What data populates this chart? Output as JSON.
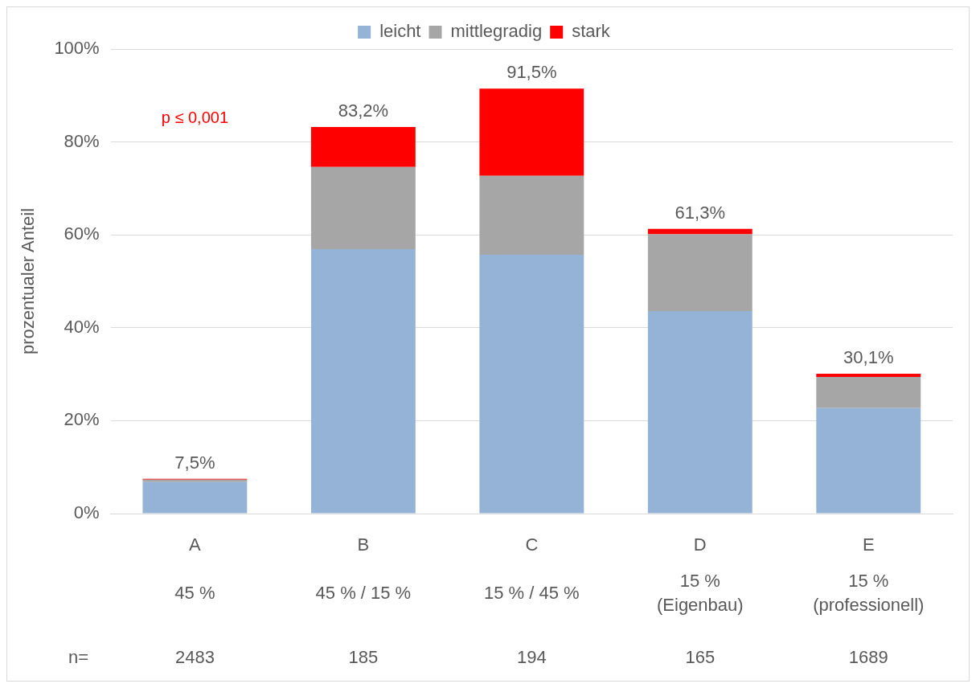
{
  "chart_data": {
    "type": "bar",
    "stacked": true,
    "ylabel": "prozentualer Anteil",
    "categories": [
      "A\n45 %\n2483",
      "B\n45 % / 15 %\n185",
      "C\n15 % / 45 %\n194",
      "D\n15 %\n(Eigenbau)\n165",
      "E\n15 %\n(professionell)\n1689"
    ],
    "series": [
      {
        "name": "leicht",
        "color": "#95b3d7",
        "values": [
          6.8,
          56.9,
          55.7,
          43.6,
          22.7
        ]
      },
      {
        "name": "mittlegradig",
        "color": "#a6a6a6",
        "values": [
          0.5,
          17.7,
          17.0,
          16.5,
          6.7
        ]
      },
      {
        "name": "stark",
        "color": "#ff0000",
        "values": [
          0.2,
          8.6,
          18.8,
          1.2,
          0.7
        ]
      }
    ],
    "totals": [
      "7,5%",
      "83,2%",
      "91,5%",
      "61,3%",
      "30,1%"
    ],
    "ylim": [
      0,
      100
    ],
    "yticks": [
      {
        "value": 0,
        "label": "0%"
      },
      {
        "value": 20,
        "label": "20%"
      },
      {
        "value": 40,
        "label": "40%"
      },
      {
        "value": 60,
        "label": "60%"
      },
      {
        "value": 80,
        "label": "80%"
      },
      {
        "value": 100,
        "label": "100%"
      }
    ],
    "grid": "y",
    "legend": "top",
    "annotations": [
      "p ≤ 0,001",
      "n="
    ]
  }
}
